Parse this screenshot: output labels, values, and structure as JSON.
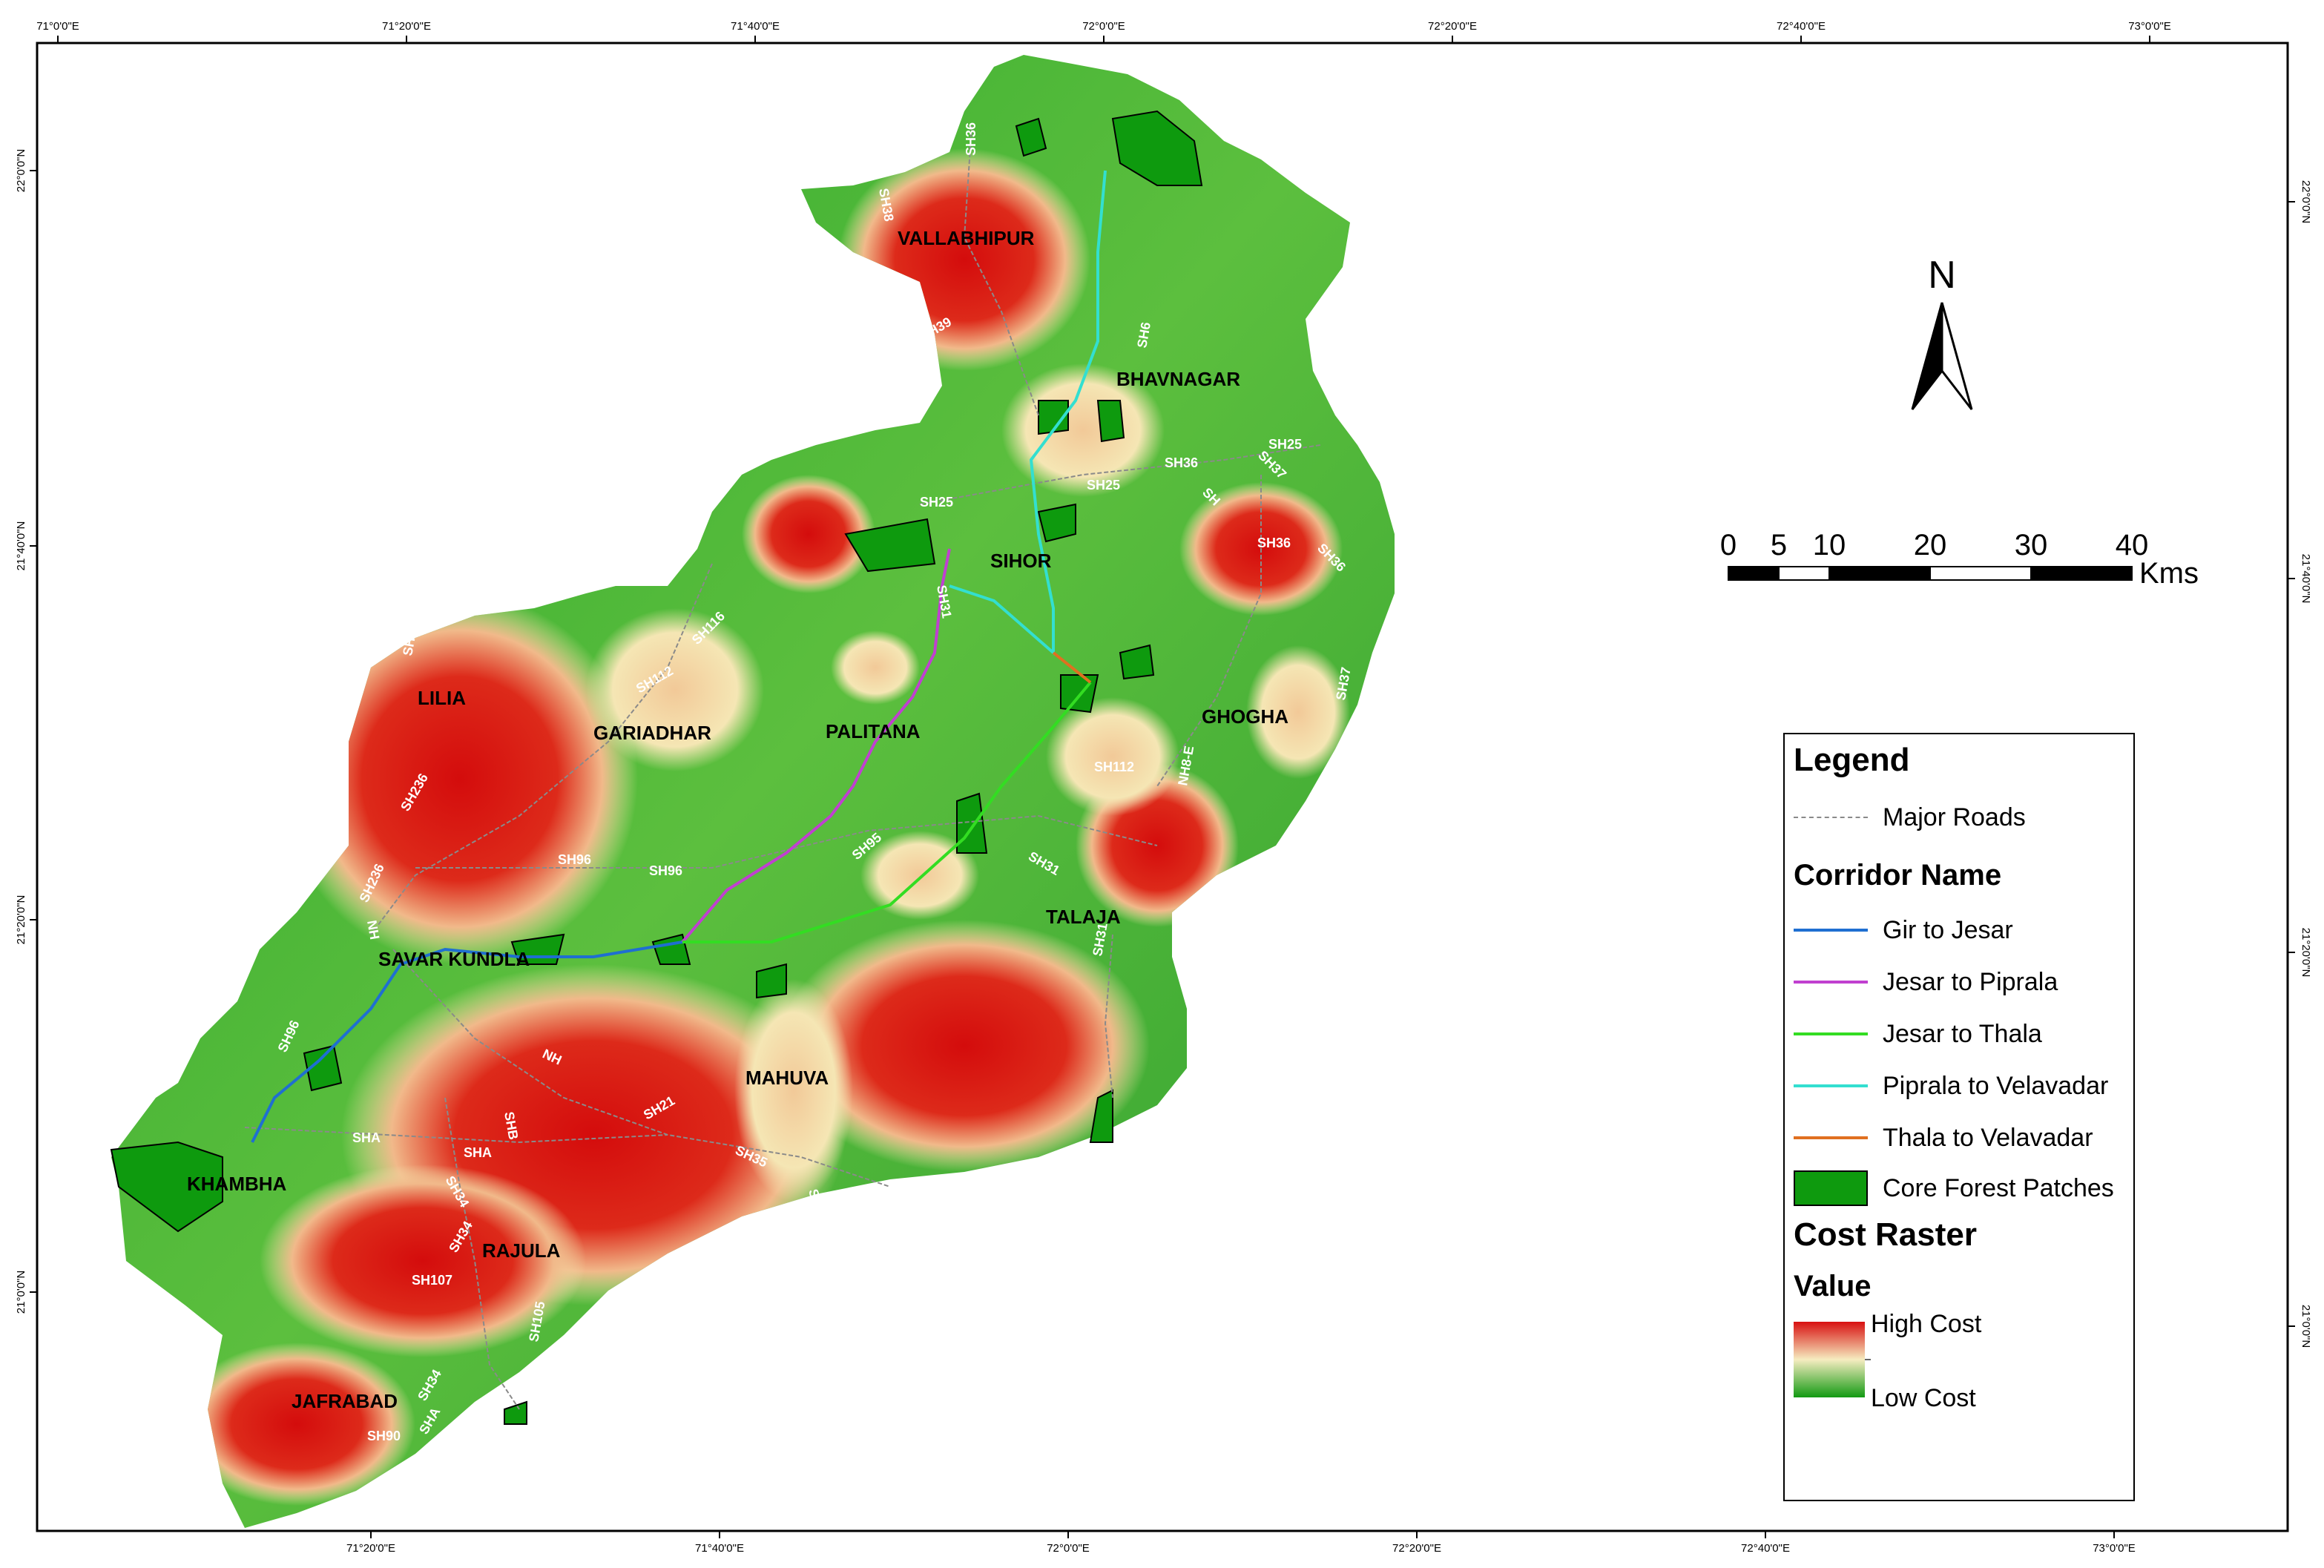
{
  "map": {
    "top_ticks": [
      "71°0'0\"E",
      "71°20'0\"E",
      "71°40'0\"E",
      "72°0'0\"E",
      "72°20'0\"E",
      "72°40'0\"E",
      "73°0'0\"E"
    ],
    "bottom_ticks": [
      "71°20'0\"E",
      "71°40'0\"E",
      "72°0'0\"E",
      "72°20'0\"E",
      "72°40'0\"E",
      "73°0'0\"E"
    ],
    "left_ticks": [
      "22°0'0\"N",
      "21°40'0\"N",
      "21°20'0\"N",
      "21°0'0\"N"
    ],
    "right_ticks": [
      "22°0'0\"N",
      "21°40'0\"N",
      "21°20'0\"N",
      "21°0'0\"N"
    ],
    "places": [
      "VALLABHIPUR",
      "BHAVNAGAR",
      "SIHOR",
      "LILIA",
      "GARIADHAR",
      "PALITANA",
      "GHOGHA",
      "TALAJA",
      "SAVAR KUNDLA",
      "MAHUVA",
      "KHAMBHA",
      "RAJULA",
      "JAFRABAD"
    ],
    "roads": [
      "SH36",
      "SH38",
      "SH39",
      "SH6",
      "SH25",
      "SH37",
      "SH36",
      "SH25",
      "SH25",
      "SH",
      "SH36",
      "SH36",
      "SH31",
      "SH116",
      "SH112",
      "SH116",
      "SH236",
      "SH96",
      "SH96",
      "SH95",
      "SH31",
      "SH112",
      "NH8-E",
      "SH37",
      "SH236",
      "NH",
      "SH96",
      "NH",
      "SHB",
      "SHA",
      "SHA",
      "SH34",
      "SH34",
      "SH21",
      "SH35",
      "SH235",
      "SH107",
      "SH105",
      "SH2",
      "SH34",
      "SH90",
      "SHA",
      "SH31"
    ]
  },
  "north_arrow": {
    "label": "N"
  },
  "scale_bar": {
    "ticks": [
      "0",
      "5",
      "10",
      "20",
      "30",
      "40"
    ],
    "unit": "Kms"
  },
  "legend": {
    "title": "Legend",
    "major_roads": "Major Roads",
    "corridor_title": "Corridor Name",
    "corridors": [
      {
        "label": "Gir to Jesar",
        "color": "#1f6fd1"
      },
      {
        "label": "Jesar to Piprala",
        "color": "#c040d0"
      },
      {
        "label": "Jesar to Thala",
        "color": "#33dd22"
      },
      {
        "label": "Piprala to Velavadar",
        "color": "#33dfd0"
      },
      {
        "label": "Thala to Velavadar",
        "color": "#e07020"
      }
    ],
    "core_forest": "Core Forest Patches",
    "cost_title": "Cost Raster",
    "value_title": "Value",
    "high": "High Cost",
    "low": "Low Cost"
  },
  "colors": {
    "high_cost": "#d81010",
    "mid_cost": "#f4e6a8",
    "low_cost": "#1b9a1b",
    "forest": "#0e9a0e"
  }
}
